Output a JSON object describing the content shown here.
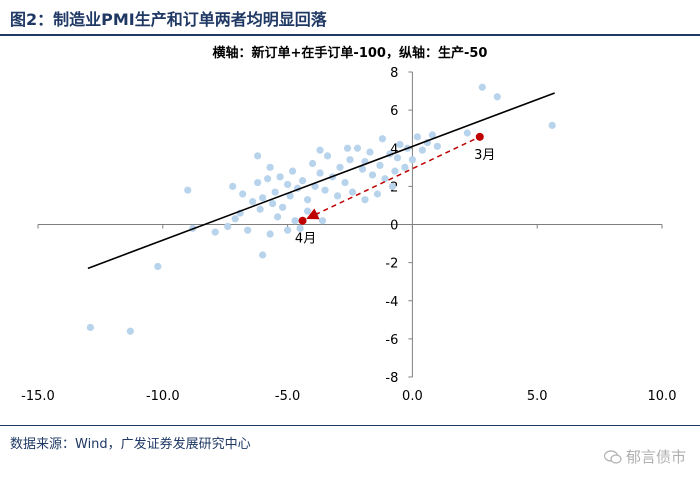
{
  "header": {
    "title": "图2：制造业PMI生产和订单两者均明显回落"
  },
  "footer": {
    "source": "数据来源：Wind，广发证券发展研究中心",
    "watermark": "郁言债市",
    "watermark_icon": "wechat-icon"
  },
  "colors": {
    "title": "#1f3864",
    "points": "#b8d3ec",
    "trend_line": "#000000",
    "highlight": "#c00000"
  },
  "chart_data": {
    "type": "scatter",
    "title": "横轴：新订单+在手订单-100，纵轴：生产-50",
    "xlabel": "",
    "ylabel": "",
    "xlim": [
      -15,
      10
    ],
    "ylim": [
      -8,
      8
    ],
    "x_ticks": [
      -15,
      -10,
      -5,
      0,
      5,
      10
    ],
    "x_tick_labels": [
      "-15.0",
      "-10.0",
      "-5.0",
      "0.0",
      "5.0",
      "10.0"
    ],
    "y_ticks": [
      -8,
      -6,
      -4,
      -2,
      0,
      2,
      4,
      6,
      8
    ],
    "y_tick_labels": [
      "-8",
      "-6",
      "-4",
      "-2",
      "0",
      "2",
      "4",
      "6",
      "8"
    ],
    "grid": false,
    "series": [
      {
        "points": [
          [
            -12.9,
            -5.4
          ],
          [
            -11.3,
            -5.6
          ],
          [
            -10.2,
            -2.2
          ],
          [
            -9.0,
            1.8
          ],
          [
            -8.8,
            -0.2
          ],
          [
            -7.9,
            -0.4
          ],
          [
            -7.4,
            -0.1
          ],
          [
            -7.1,
            0.3
          ],
          [
            -6.9,
            0.6
          ],
          [
            -6.6,
            -0.3
          ],
          [
            -7.2,
            2.0
          ],
          [
            -6.8,
            1.6
          ],
          [
            -6.4,
            1.2
          ],
          [
            -6.1,
            0.8
          ],
          [
            -6.0,
            -1.6
          ],
          [
            -5.7,
            -0.5
          ],
          [
            -5.4,
            0.4
          ],
          [
            -5.0,
            -0.3
          ],
          [
            -4.7,
            0.2
          ],
          [
            -4.5,
            -0.2
          ],
          [
            -4.2,
            0.7
          ],
          [
            -3.9,
            0.5
          ],
          [
            -3.6,
            0.2
          ],
          [
            -6.2,
            2.2
          ],
          [
            -6.0,
            1.4
          ],
          [
            -5.8,
            2.4
          ],
          [
            -5.6,
            1.1
          ],
          [
            -5.5,
            1.7
          ],
          [
            -5.3,
            2.5
          ],
          [
            -5.2,
            0.9
          ],
          [
            -5.0,
            2.1
          ],
          [
            -4.9,
            1.5
          ],
          [
            -4.8,
            2.8
          ],
          [
            -4.6,
            1.9
          ],
          [
            -4.4,
            2.3
          ],
          [
            -4.2,
            1.3
          ],
          [
            -4.0,
            3.2
          ],
          [
            -3.9,
            2.0
          ],
          [
            -3.7,
            2.7
          ],
          [
            -3.5,
            1.8
          ],
          [
            -3.4,
            3.6
          ],
          [
            -3.2,
            2.5
          ],
          [
            -3.0,
            1.5
          ],
          [
            -2.9,
            3.0
          ],
          [
            -2.7,
            2.2
          ],
          [
            -2.5,
            3.4
          ],
          [
            -2.4,
            1.7
          ],
          [
            -2.2,
            4.0
          ],
          [
            -2.0,
            2.9
          ],
          [
            -1.9,
            3.3
          ],
          [
            -1.7,
            3.8
          ],
          [
            -1.6,
            2.6
          ],
          [
            -1.4,
            1.6
          ],
          [
            -1.3,
            3.1
          ],
          [
            -1.1,
            2.4
          ],
          [
            -0.9,
            3.7
          ],
          [
            -0.8,
            2.0
          ],
          [
            -0.6,
            3.5
          ],
          [
            -0.5,
            4.2
          ],
          [
            -0.3,
            3.0
          ],
          [
            -0.2,
            4.0
          ],
          [
            0.0,
            3.4
          ],
          [
            0.2,
            4.6
          ],
          [
            0.4,
            3.9
          ],
          [
            0.6,
            4.3
          ],
          [
            0.8,
            4.7
          ],
          [
            1.0,
            4.1
          ],
          [
            -2.6,
            4.0
          ],
          [
            -1.2,
            4.5
          ],
          [
            -6.2,
            3.6
          ],
          [
            -3.7,
            3.9
          ],
          [
            -0.7,
            2.8
          ],
          [
            -1.9,
            1.3
          ],
          [
            -5.7,
            3.0
          ],
          [
            2.2,
            4.8
          ],
          [
            2.8,
            7.2
          ],
          [
            3.4,
            6.7
          ],
          [
            5.6,
            5.2
          ]
        ]
      }
    ],
    "trend_line": {
      "x": [
        -13.0,
        5.7
      ],
      "y": [
        -2.3,
        6.9
      ]
    },
    "annotations": [
      {
        "label": "3月",
        "x": 2.7,
        "y": 4.6
      },
      {
        "label": "4月",
        "x": -4.4,
        "y": 0.2
      }
    ]
  }
}
